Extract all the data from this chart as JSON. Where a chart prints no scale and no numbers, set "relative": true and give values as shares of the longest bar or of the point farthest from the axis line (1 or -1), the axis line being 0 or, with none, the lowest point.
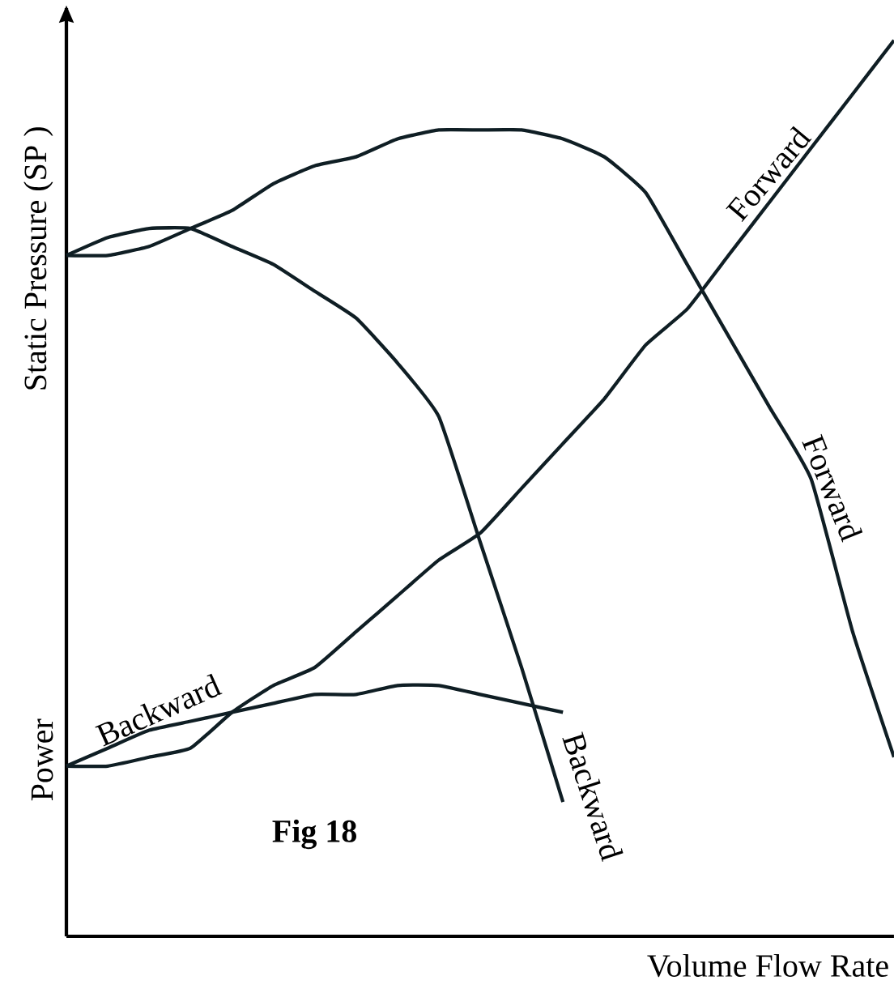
{
  "chart_data": {
    "type": "line",
    "relative": true,
    "xlabel": "Volume Flow Rate",
    "ylabel": "Static Pressure (SP )",
    "annotations": [
      "Power",
      "Fig 18"
    ],
    "categories": [
      null,
      null,
      null,
      null,
      null,
      null,
      null,
      null,
      null,
      null,
      null,
      null,
      null,
      null,
      null,
      null,
      null,
      null,
      null,
      null,
      null
    ],
    "series": [
      {
        "name": "Forward",
        "color": "#0f1e24",
        "values": [
          0.76,
          0.76,
          0.77,
          0.79,
          0.81,
          0.84,
          0.86,
          0.87,
          0.89,
          0.9,
          0.9,
          0.9,
          0.89,
          0.87,
          0.83,
          0.75,
          0.67,
          0.59,
          0.51,
          0.34,
          0.2
        ]
      },
      {
        "name": "Backward",
        "color": "#0f1e24",
        "values": [
          0.76,
          0.78,
          0.79,
          0.79,
          0.77,
          0.75,
          0.72,
          0.69,
          0.64,
          0.58,
          0.44,
          0.3,
          0.15,
          null,
          null,
          null,
          null,
          null,
          null,
          null,
          null
        ]
      },
      {
        "name": "Forward",
        "color": "#0f1e24",
        "values": [
          0.19,
          0.19,
          0.2,
          0.21,
          0.25,
          0.28,
          0.3,
          0.34,
          0.38,
          0.42,
          0.45,
          0.5,
          0.55,
          0.6,
          0.66,
          0.7,
          0.76,
          0.82,
          0.88,
          0.94,
          1
        ]
      },
      {
        "name": "Backward",
        "color": "#0f1e24",
        "values": [
          0.19,
          0.21,
          0.23,
          0.24,
          0.25,
          0.26,
          0.27,
          0.27,
          0.28,
          0.28,
          0.27,
          0.26,
          0.25,
          null,
          null,
          null,
          null,
          null,
          null,
          null,
          null
        ]
      }
    ],
    "marker": "none",
    "line_style": "solid"
  }
}
